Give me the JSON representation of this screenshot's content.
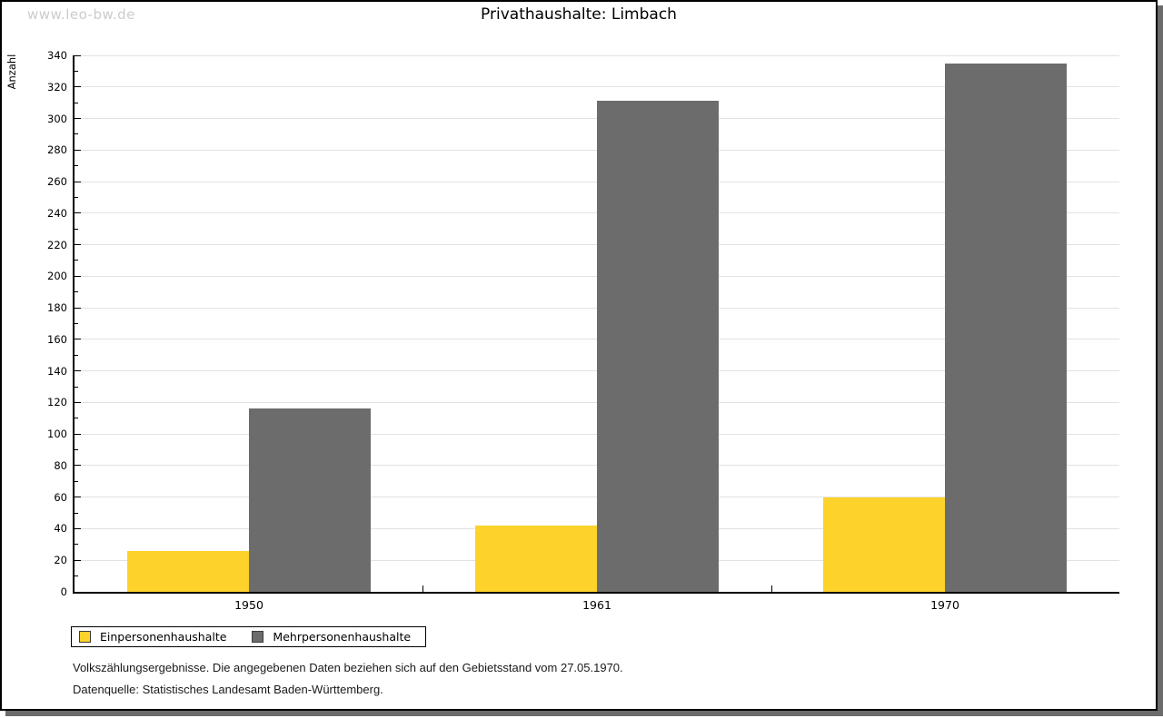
{
  "watermark": "www.leo-bw.de",
  "chart_data": {
    "type": "bar",
    "title": "Privathaushalte: Limbach",
    "xlabel": "",
    "ylabel": "Anzahl",
    "categories": [
      "1950",
      "1961",
      "1970"
    ],
    "series": [
      {
        "name": "Einpersonenhaushalte",
        "color": "#fdd32b",
        "values": [
          26,
          42,
          60
        ]
      },
      {
        "name": "Mehrpersonenhaushalte",
        "color": "#6c6c6c",
        "values": [
          116,
          311,
          335
        ]
      }
    ],
    "ylim": [
      0,
      340
    ],
    "y_major_step": 20,
    "y_minor_step": 10,
    "grid": true,
    "legend_position": "bottom-left"
  },
  "footnotes": [
    "Volkszählungsergebnisse. Die angegebenen Daten beziehen sich auf den Gebietsstand vom 27.05.1970.",
    "Datenquelle: Statistisches Landesamt Baden-Württemberg."
  ]
}
